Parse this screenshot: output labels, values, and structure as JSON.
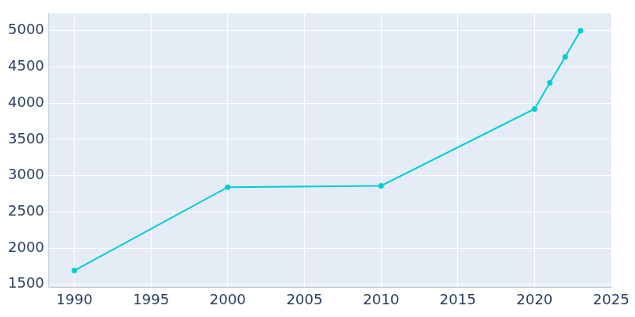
{
  "chart_data": {
    "type": "line",
    "x": [
      1990,
      2000,
      2010,
      2020,
      2021,
      2022,
      2023
    ],
    "values": [
      1690,
      2840,
      2860,
      3920,
      4280,
      4640,
      5000
    ],
    "color": "#00ced1",
    "marker": "circle",
    "xlim": [
      1988.35,
      2025
    ],
    "xticks": [
      1990,
      1995,
      2000,
      2005,
      2010,
      2015,
      2020,
      2025
    ],
    "ylim": [
      1460,
      5240
    ],
    "yticks": [
      1500,
      2000,
      2500,
      3000,
      3500,
      4000,
      4500,
      5000
    ],
    "grid": true
  }
}
